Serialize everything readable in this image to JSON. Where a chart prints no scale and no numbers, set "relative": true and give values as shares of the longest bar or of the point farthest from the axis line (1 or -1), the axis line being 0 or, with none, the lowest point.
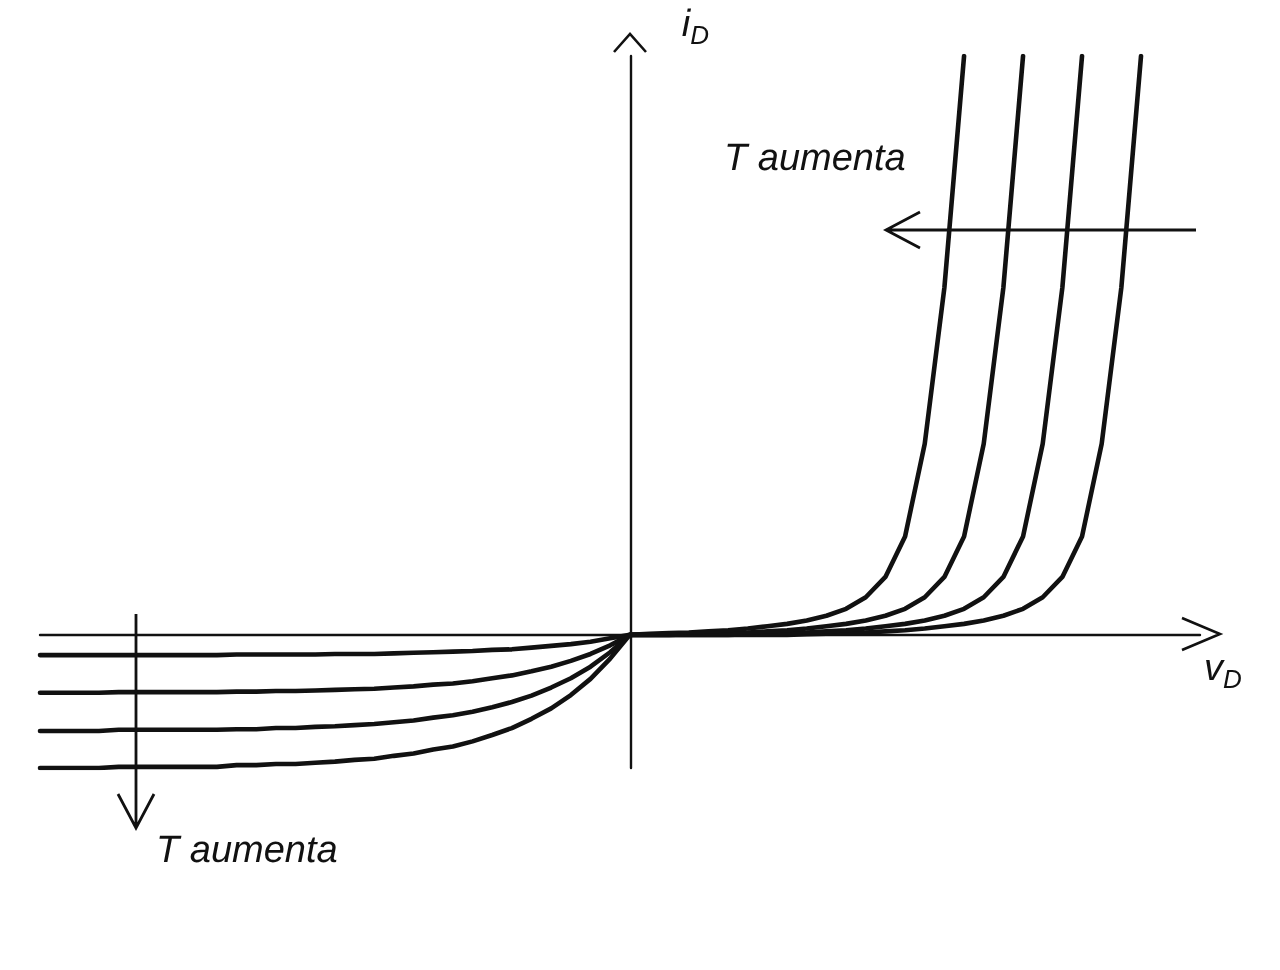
{
  "chart_data": {
    "type": "line",
    "relative": true,
    "xlabel": "v$_{D}$",
    "ylabel": "i$_{D}$",
    "annotations": [
      "T aumenta",
      "T aumenta"
    ],
    "grid": false,
    "categories": [
      null,
      null,
      null,
      null,
      null,
      null,
      null,
      null,
      null,
      null,
      null,
      null,
      null,
      null,
      null,
      null,
      null,
      null,
      null,
      null,
      null,
      null,
      null,
      null,
      null,
      null,
      null,
      null,
      null,
      null,
      null,
      null,
      null,
      null,
      null,
      null,
      null,
      null,
      null,
      null,
      null,
      null,
      null,
      null,
      null,
      null,
      null,
      null,
      null,
      null,
      null,
      null,
      null,
      null,
      null,
      null,
      null,
      null,
      null,
      null
    ],
    "series": [
      {
        "color": "#111111",
        "values": [
          -0.035,
          -0.035,
          -0.035,
          -0.035,
          -0.035,
          -0.035,
          -0.035,
          -0.035,
          -0.035,
          -0.035,
          -0.034,
          -0.034,
          -0.034,
          -0.034,
          -0.034,
          -0.033,
          -0.033,
          -0.033,
          -0.032,
          -0.031,
          -0.03,
          -0.029,
          -0.028,
          -0.026,
          -0.025,
          -0.022,
          -0.019,
          -0.016,
          -0.012,
          -0.006,
          0,
          0,
          0,
          0,
          0,
          0,
          0,
          0,
          0,
          0.001,
          0.002,
          0.003,
          0.004,
          0.006,
          0.008,
          0.011,
          0.015,
          0.019,
          0.025,
          0.033,
          0.045,
          0.065,
          0.1,
          0.17,
          0.33,
          0.6,
          1,
          null,
          null,
          null
        ]
      },
      {
        "color": "#111111",
        "values": [
          -0.1,
          -0.1,
          -0.1,
          -0.1,
          -0.099,
          -0.099,
          -0.099,
          -0.099,
          -0.099,
          -0.099,
          -0.098,
          -0.098,
          -0.097,
          -0.097,
          -0.096,
          -0.095,
          -0.094,
          -0.093,
          -0.091,
          -0.089,
          -0.086,
          -0.084,
          -0.08,
          -0.075,
          -0.07,
          -0.063,
          -0.055,
          -0.045,
          -0.033,
          -0.018,
          0,
          0,
          0,
          0,
          0,
          0,
          0.001,
          0.002,
          0.003,
          0.004,
          0.006,
          0.008,
          0.011,
          0.015,
          0.019,
          0.025,
          0.033,
          0.045,
          0.065,
          0.1,
          0.17,
          0.33,
          0.6,
          1,
          null,
          null,
          null,
          null,
          null,
          null
        ]
      },
      {
        "color": "#111111",
        "values": [
          -0.166,
          -0.166,
          -0.166,
          -0.166,
          -0.164,
          -0.164,
          -0.164,
          -0.164,
          -0.164,
          -0.164,
          -0.163,
          -0.163,
          -0.161,
          -0.161,
          -0.159,
          -0.158,
          -0.156,
          -0.154,
          -0.151,
          -0.148,
          -0.143,
          -0.139,
          -0.133,
          -0.125,
          -0.116,
          -0.105,
          -0.091,
          -0.075,
          -0.055,
          -0.03,
          0,
          0,
          0,
          0.001,
          0.002,
          0.003,
          0.004,
          0.006,
          0.008,
          0.011,
          0.015,
          0.019,
          0.025,
          0.033,
          0.045,
          0.065,
          0.1,
          0.17,
          0.33,
          0.6,
          1,
          null,
          null,
          null,
          null,
          null,
          null,
          null,
          null,
          null
        ]
      },
      {
        "color": "#111111",
        "values": [
          -0.23,
          -0.23,
          -0.23,
          -0.23,
          -0.228,
          -0.228,
          -0.228,
          -0.228,
          -0.228,
          -0.228,
          -0.225,
          -0.225,
          -0.223,
          -0.223,
          -0.221,
          -0.219,
          -0.216,
          -0.214,
          -0.209,
          -0.205,
          -0.198,
          -0.193,
          -0.184,
          -0.173,
          -0.161,
          -0.145,
          -0.127,
          -0.104,
          -0.076,
          -0.041,
          0,
          0.002,
          0.003,
          0.004,
          0.006,
          0.008,
          0.011,
          0.015,
          0.019,
          0.025,
          0.033,
          0.045,
          0.065,
          0.1,
          0.17,
          0.33,
          0.6,
          1,
          null,
          null,
          null,
          null,
          null,
          null,
          null,
          null,
          null,
          null,
          null,
          null
        ]
      }
    ]
  }
}
